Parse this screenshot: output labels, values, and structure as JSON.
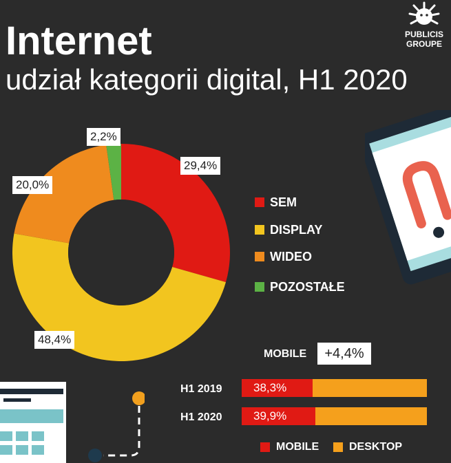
{
  "header": {
    "title": "Internet",
    "subtitle": "udział kategorii digital, H1 2020",
    "logo_line1": "PUBLICIS",
    "logo_line2": "GROUPE"
  },
  "colors": {
    "SEM": "#e01a14",
    "DISPLAY": "#f2c51f",
    "WIDEO": "#ef8b1e",
    "POZOSTALE": "#5cb245",
    "mobile": "#e01a14",
    "desktop": "#f5a01c"
  },
  "chart_data": [
    {
      "type": "pie",
      "donut": true,
      "series": [
        {
          "name": "SEM",
          "value": 29.4,
          "label": "29,4%"
        },
        {
          "name": "DISPLAY",
          "value": 48.4,
          "label": "48,4%"
        },
        {
          "name": "WIDEO",
          "value": 20.0,
          "label": "20,0%"
        },
        {
          "name": "POZOSTAŁE",
          "value": 2.2,
          "label": "2,2%"
        }
      ],
      "legend": [
        "SEM",
        "DISPLAY",
        "WIDEO",
        "POZOSTAŁE"
      ],
      "legend_position": "right"
    },
    {
      "type": "bar",
      "stacked": true,
      "orientation": "horizontal",
      "categories": [
        "H1 2019",
        "H1 2020"
      ],
      "series": [
        {
          "name": "MOBILE",
          "values": [
            38.3,
            39.9
          ],
          "labels": [
            "38,3%",
            "39,9%"
          ]
        },
        {
          "name": "DESKTOP",
          "values": [
            61.7,
            60.1
          ]
        }
      ],
      "annotation_label": "MOBILE",
      "annotation_value": "+4,4%",
      "legend": [
        "MOBILE",
        "DESKTOP"
      ],
      "legend_position": "bottom"
    }
  ]
}
